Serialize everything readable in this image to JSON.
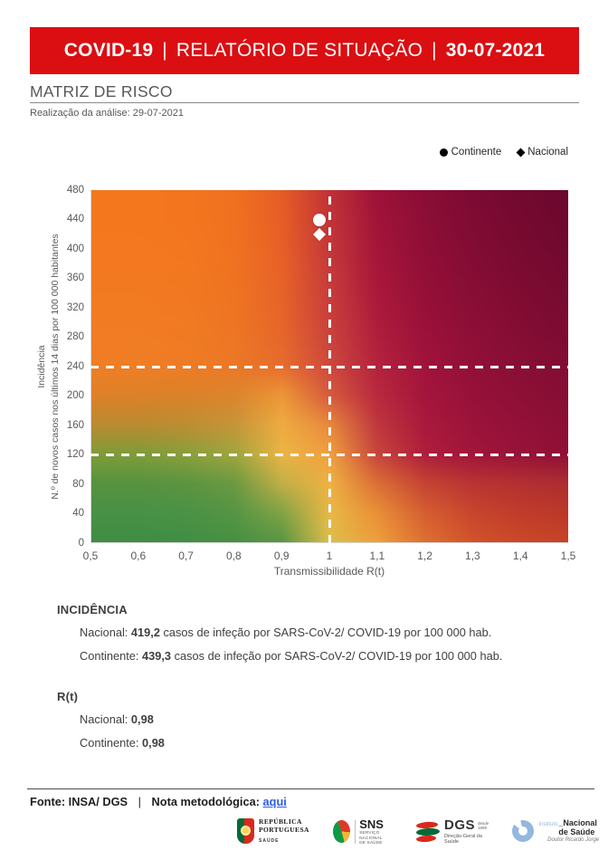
{
  "header": {
    "part1": "COVID-19",
    "sep": "|",
    "part2": "RELATÓRIO DE SITUAÇÃO",
    "part3": "30-07-2021"
  },
  "section": {
    "title": "MATRIZ DE RISCO",
    "subtitle": "Realização da análise: 29-07-2021"
  },
  "legend": {
    "continente": "Continente",
    "nacional": "Nacional"
  },
  "colors": {
    "banner_red": "#db0e12",
    "link_blue": "#2f5ce7",
    "marker_white": "#ffffff",
    "axis_text_gray": "#595959"
  },
  "chart_data": {
    "type": "heatmap",
    "title": "Matriz de Risco",
    "xlabel": "Transmissibilidade R(t)",
    "ylabel_line1": "Incidência",
    "ylabel_line2": "N.º de novos casos nos últimos 14 dias por 100 000 habitantes",
    "xlim": [
      0.5,
      1.5
    ],
    "ylim": [
      0,
      480
    ],
    "x_ticks": [
      {
        "value": 0.5,
        "label": "0,5"
      },
      {
        "value": 0.6,
        "label": "0,6"
      },
      {
        "value": 0.7,
        "label": "0,7"
      },
      {
        "value": 0.8,
        "label": "0,8"
      },
      {
        "value": 0.9,
        "label": "0,9"
      },
      {
        "value": 1.0,
        "label": "1"
      },
      {
        "value": 1.1,
        "label": "1,1"
      },
      {
        "value": 1.2,
        "label": "1,2"
      },
      {
        "value": 1.3,
        "label": "1,3"
      },
      {
        "value": 1.4,
        "label": "1,4"
      },
      {
        "value": 1.5,
        "label": "1,5"
      }
    ],
    "y_ticks": [
      0,
      40,
      80,
      120,
      160,
      200,
      240,
      280,
      320,
      360,
      400,
      440,
      480
    ],
    "reference_lines": {
      "vertical_x": [
        1.0
      ],
      "horizontal_y": [
        120,
        240
      ]
    },
    "points": [
      {
        "name": "Continente",
        "marker": "circle",
        "x": 0.98,
        "y": 439.3
      },
      {
        "name": "Nacional",
        "marker": "diamond",
        "x": 0.98,
        "y": 419.2
      }
    ],
    "gradient_grid": {
      "x_values": [
        0.5,
        0.6,
        0.7,
        0.8,
        0.9,
        1.0,
        1.1,
        1.2,
        1.3,
        1.4,
        1.5
      ],
      "y_values_top_to_bottom": [
        480,
        440,
        400,
        360,
        320,
        280,
        240,
        200,
        160,
        120,
        80,
        40,
        0
      ],
      "colors": [
        [
          "#F4771E",
          "#F4771E",
          "#F3761E",
          "#F0701F",
          "#E65C25",
          "#C13136",
          "#9E1138",
          "#8A0D35",
          "#7C0A32",
          "#73092F",
          "#6B082D"
        ],
        [
          "#F4771E",
          "#F4771E",
          "#F3761E",
          "#F0711F",
          "#E75E26",
          "#C33438",
          "#A11338",
          "#8D0E36",
          "#7F0B33",
          "#76092F",
          "#6E082E"
        ],
        [
          "#F4781F",
          "#F4781F",
          "#F3771F",
          "#F07220",
          "#E76027",
          "#C53739",
          "#A41539",
          "#900E37",
          "#820C34",
          "#790A30",
          "#71092F"
        ],
        [
          "#F37920",
          "#F37920",
          "#F27820",
          "#EF7321",
          "#E76228",
          "#C73B3A",
          "#A8173A",
          "#940F37",
          "#860D35",
          "#7D0B31",
          "#750A30"
        ],
        [
          "#F27A21",
          "#F27A21",
          "#F17921",
          "#EE7422",
          "#E66429",
          "#C93E3B",
          "#AC1A3B",
          "#980F38",
          "#8A0E36",
          "#810C32",
          "#790B31"
        ],
        [
          "#F17C23",
          "#F17C23",
          "#F07A23",
          "#ED7624",
          "#E6672A",
          "#CB433C",
          "#B01E3C",
          "#9C113A",
          "#8E0F37",
          "#850D34",
          "#7D0C32"
        ],
        [
          "#EF7E25",
          "#EF7E25",
          "#EE7C25",
          "#EB7826",
          "#E76D2D",
          "#CE493D",
          "#B4233D",
          "#A0133B",
          "#921038",
          "#890E35",
          "#810D33"
        ],
        [
          "#DE8128",
          "#DC8128",
          "#DB822A",
          "#DC852E",
          "#EC9737",
          "#D75A3D",
          "#B9293E",
          "#A5153C",
          "#971139",
          "#8E0F36",
          "#860E34"
        ],
        [
          "#BA8B30",
          "#BA8B30",
          "#BD8E33",
          "#C69538",
          "#EEAC41",
          "#E8883C",
          "#BF373D",
          "#AA193C",
          "#9C133A",
          "#931138",
          "#8B0F35"
        ],
        [
          "#7F9C3A",
          "#7F9C3A",
          "#8A9F3C",
          "#9EA63E",
          "#ECB445",
          "#F0A03E",
          "#C7453C",
          "#AF1E3B",
          "#A1153A",
          "#981238",
          "#901036"
        ],
        [
          "#57923F",
          "#57923F",
          "#5D9440",
          "#6C9941",
          "#C2AF47",
          "#EFB143",
          "#DB6E35",
          "#C54333",
          "#B93432",
          "#B33031",
          "#AD2D2F"
        ],
        [
          "#479146",
          "#479146",
          "#4B9245",
          "#559544",
          "#82A345",
          "#E9B845",
          "#E98F37",
          "#D55E31",
          "#C8452C",
          "#C13C2A",
          "#BB3829"
        ],
        [
          "#3F8D43",
          "#3F8D43",
          "#418E43",
          "#479041",
          "#5A9643",
          "#DDBE4A",
          "#EF9F3B",
          "#DE7030",
          "#D1532A",
          "#CB4827",
          "#C64326"
        ]
      ]
    }
  },
  "incidencia": {
    "heading": "INCIDÊNCIA",
    "nacional_label": "Nacional: ",
    "nacional_value": "419,2",
    "nacional_suffix": " casos de infeção por SARS-CoV-2/ COVID-19 por 100 000 hab.",
    "continente_label": "Continente: ",
    "continente_value": "439,3",
    "continente_suffix": " casos de infeção por SARS-CoV-2/ COVID-19 por 100 000 hab."
  },
  "rt": {
    "heading": "R(t)",
    "nacional_label": "Nacional: ",
    "nacional_value": "0,98",
    "continente_label": "Continente: ",
    "continente_value": "0,98"
  },
  "footer": {
    "source": "Fonte: INSA/ DGS",
    "sep": "|",
    "note": "Nota metodológica:",
    "link": "aqui"
  },
  "logos": {
    "republica": {
      "line1": "REPÚBLICA",
      "line2": "PORTUGUESA",
      "line3": "SAÚDE"
    },
    "sns": {
      "abbr": "SNS",
      "sub1": "SERVIÇO NACIONAL",
      "sub2": "DE SAÚDE"
    },
    "dgs": {
      "abbr": "DGS",
      "since1": "desde",
      "since2": "1899",
      "sub": "Direção-Geral da Saúde"
    },
    "insa": {
      "pre": "Instituto",
      "name": "_Nacional de Saúde",
      "sub": "Doutor Ricardo Jorge"
    }
  }
}
